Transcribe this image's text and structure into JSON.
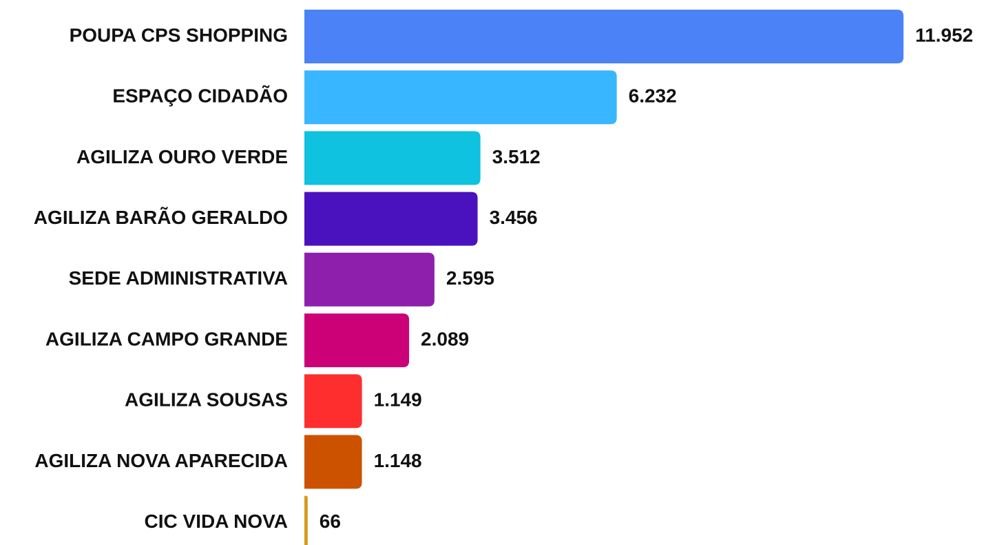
{
  "chart_data": {
    "type": "bar",
    "orientation": "horizontal",
    "categories": [
      "POUPA CPS SHOPPING",
      "ESPAÇO CIDADÃO",
      "AGILIZA OURO VERDE",
      "AGILIZA BARÃO GERALDO",
      "SEDE ADMINISTRATIVA",
      "AGILIZA CAMPO GRANDE",
      "AGILIZA SOUSAS",
      "AGILIZA NOVA APARECIDA",
      "CIC VIDA NOVA"
    ],
    "values": [
      11952,
      6232,
      3512,
      3456,
      2595,
      2089,
      1149,
      1148,
      66
    ],
    "value_labels": [
      "11.952",
      "6.232",
      "3.512",
      "3.456",
      "2.595",
      "2.089",
      "1.149",
      "1.148",
      "66"
    ],
    "colors": [
      "#4b82f7",
      "#38b6ff",
      "#0ec2e0",
      "#4a12bf",
      "#8e1fad",
      "#cc0077",
      "#ff2e2e",
      "#cc5200",
      "#d69a1a"
    ]
  }
}
